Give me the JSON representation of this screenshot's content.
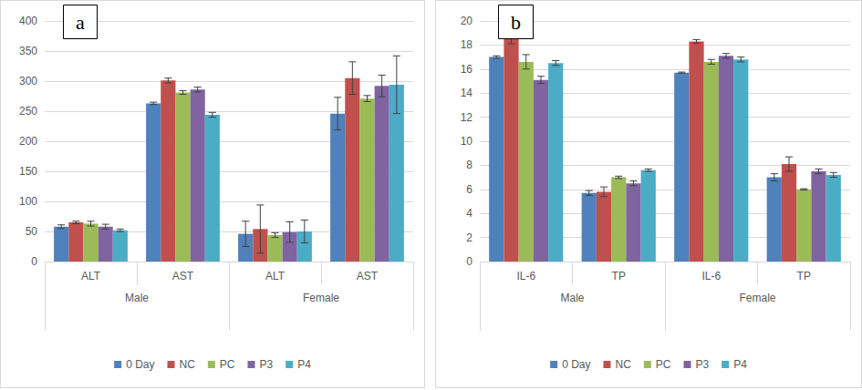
{
  "chart_data": [
    {
      "type": "bar",
      "title": "a",
      "categories": [
        "ALT",
        "AST",
        "ALT",
        "AST"
      ],
      "category_groups": [
        "Male",
        "Male",
        "Female",
        "Female"
      ],
      "series": [
        {
          "name": "0 Day",
          "color": "#4f81bd",
          "values": [
            58,
            263,
            46,
            246
          ],
          "errors": [
            3,
            2,
            21,
            27
          ]
        },
        {
          "name": "NC",
          "color": "#c0504d",
          "values": [
            65,
            301,
            54,
            305
          ],
          "errors": [
            2,
            4,
            40,
            27
          ]
        },
        {
          "name": "PC",
          "color": "#9bbb59",
          "values": [
            63,
            281,
            44,
            271
          ],
          "errors": [
            4,
            3,
            4,
            5
          ]
        },
        {
          "name": "P3",
          "color": "#8064a2",
          "values": [
            58,
            286,
            49,
            292
          ],
          "errors": [
            4,
            4,
            17,
            18
          ]
        },
        {
          "name": "P4",
          "color": "#4bacc6",
          "values": [
            52,
            244,
            50,
            294
          ],
          "errors": [
            2,
            4,
            19,
            48
          ]
        }
      ],
      "ylim": [
        0,
        400
      ],
      "yticks": [
        0,
        50,
        100,
        150,
        200,
        250,
        300,
        350,
        400
      ],
      "grid": true,
      "legend": "bottom"
    },
    {
      "type": "bar",
      "title": "b",
      "categories": [
        "IL-6",
        "TP",
        "IL-6",
        "TP"
      ],
      "category_groups": [
        "Male",
        "Male",
        "Female",
        "Female"
      ],
      "series": [
        {
          "name": "0 Day",
          "color": "#4f81bd",
          "values": [
            17.0,
            5.7,
            15.7,
            7.0
          ],
          "errors": [
            0.1,
            0.2,
            0.05,
            0.3
          ]
        },
        {
          "name": "NC",
          "color": "#c0504d",
          "values": [
            18.5,
            5.8,
            18.3,
            8.1
          ],
          "errors": [
            0.4,
            0.4,
            0.15,
            0.6
          ]
        },
        {
          "name": "PC",
          "color": "#9bbb59",
          "values": [
            16.6,
            7.0,
            16.6,
            6.0
          ],
          "errors": [
            0.6,
            0.1,
            0.2,
            0.05
          ]
        },
        {
          "name": "P3",
          "color": "#8064a2",
          "values": [
            15.1,
            6.5,
            17.1,
            7.5
          ],
          "errors": [
            0.3,
            0.2,
            0.2,
            0.2
          ]
        },
        {
          "name": "P4",
          "color": "#4bacc6",
          "values": [
            16.5,
            7.6,
            16.8,
            7.2
          ],
          "errors": [
            0.2,
            0.1,
            0.2,
            0.2
          ]
        }
      ],
      "ylim": [
        0,
        20
      ],
      "yticks": [
        0,
        2,
        4,
        6,
        8,
        10,
        12,
        14,
        16,
        18,
        20
      ],
      "grid": true,
      "legend": "bottom"
    }
  ]
}
